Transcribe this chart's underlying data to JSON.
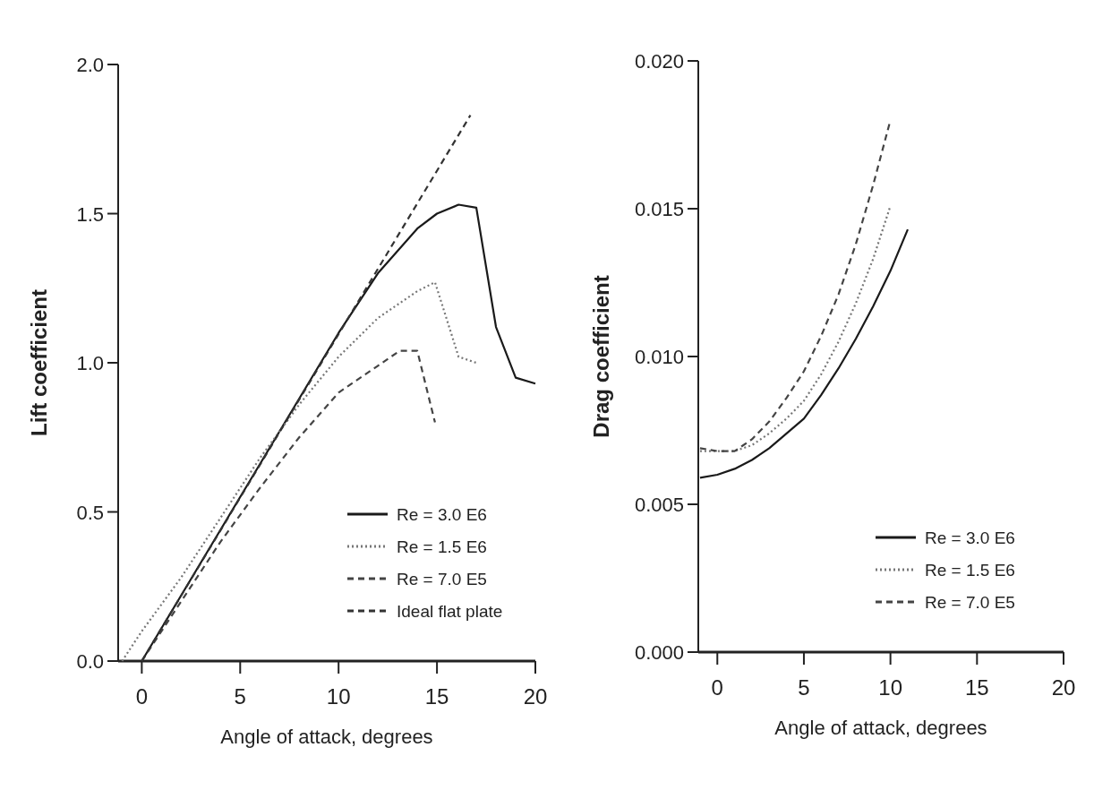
{
  "chart_data": [
    {
      "type": "line",
      "xlabel": "Angle of attack, degrees",
      "ylabel": "Lift coefficient",
      "xlim": [
        -1.2,
        20
      ],
      "ylim": [
        0,
        2
      ],
      "xticks": [
        0,
        5,
        10,
        15,
        20
      ],
      "yticks": [
        {
          "value": 0,
          "label": "0.0"
        },
        {
          "value": 0.5,
          "label": "0.5"
        },
        {
          "value": 1,
          "label": "1.0"
        },
        {
          "value": 1.5,
          "label": "1.5"
        },
        {
          "value": 2,
          "label": "2.0"
        }
      ],
      "legend": "bottom right",
      "series": [
        {
          "name": "Re = 3.0 E6",
          "color": "#1a1a1a",
          "line_style": "solid",
          "x": [
            0,
            2,
            4,
            6,
            8,
            10,
            12,
            14,
            15,
            16.1,
            17,
            18,
            19,
            20
          ],
          "values": [
            0,
            0.22,
            0.44,
            0.66,
            0.88,
            1.1,
            1.3,
            1.45,
            1.5,
            1.53,
            1.52,
            1.12,
            0.95,
            0.93
          ]
        },
        {
          "name": "Re = 1.5 E6",
          "color": "#777777",
          "line_style": "dotted",
          "x": [
            -1,
            0,
            2,
            4,
            6,
            8,
            10,
            12,
            14,
            14.9,
            16.1,
            17
          ],
          "values": [
            0,
            0.1,
            0.28,
            0.48,
            0.68,
            0.86,
            1.02,
            1.15,
            1.24,
            1.27,
            1.02,
            1.0
          ]
        },
        {
          "name": "Re = 7.0 E5",
          "color": "#444444",
          "line_style": "dashed",
          "x": [
            0,
            2,
            4,
            6,
            8,
            10,
            12,
            13.1,
            14,
            14.9
          ],
          "values": [
            0,
            0.2,
            0.4,
            0.58,
            0.75,
            0.9,
            0.99,
            1.04,
            1.04,
            0.8
          ]
        },
        {
          "name": "Ideal flat plate",
          "color": "#333333",
          "line_style": "dashed",
          "x": [
            0,
            16.7
          ],
          "values": [
            0,
            1.83
          ]
        }
      ]
    },
    {
      "type": "line",
      "xlabel": "Angle of attack, degrees",
      "ylabel": "Drag coefficient",
      "xlim": [
        -1.1,
        20
      ],
      "ylim": [
        0,
        0.02
      ],
      "xticks": [
        0,
        5,
        10,
        15,
        20
      ],
      "yticks": [
        {
          "value": 0,
          "label": "0.000"
        },
        {
          "value": 0.005,
          "label": "0.005"
        },
        {
          "value": 0.01,
          "label": "0.010"
        },
        {
          "value": 0.015,
          "label": "0.015"
        },
        {
          "value": 0.02,
          "label": "0.020"
        }
      ],
      "legend": "bottom right",
      "series": [
        {
          "name": "Re = 3.0 E6",
          "color": "#1a1a1a",
          "line_style": "solid",
          "x": [
            -1,
            0,
            1,
            2,
            3,
            4,
            5,
            6,
            7,
            8,
            9,
            10,
            11
          ],
          "values": [
            0.0059,
            0.006,
            0.0062,
            0.0065,
            0.0069,
            0.0074,
            0.0079,
            0.0087,
            0.0096,
            0.0106,
            0.0117,
            0.0129,
            0.0143
          ]
        },
        {
          "name": "Re = 1.5 E6",
          "color": "#777777",
          "line_style": "dotted",
          "x": [
            -1,
            0,
            1,
            2,
            3,
            4,
            5,
            6,
            7,
            8,
            9,
            10
          ],
          "values": [
            0.0068,
            0.0068,
            0.0068,
            0.007,
            0.0074,
            0.0079,
            0.0085,
            0.0094,
            0.0105,
            0.0118,
            0.0133,
            0.0151
          ]
        },
        {
          "name": "Re = 7.0 E5",
          "color": "#444444",
          "line_style": "dashed",
          "x": [
            -1,
            0,
            1,
            2,
            3,
            4,
            5,
            6,
            7,
            8,
            9,
            10
          ],
          "values": [
            0.0069,
            0.0068,
            0.0068,
            0.0072,
            0.0078,
            0.0086,
            0.0095,
            0.0107,
            0.0121,
            0.0138,
            0.0158,
            0.018
          ]
        }
      ]
    }
  ]
}
